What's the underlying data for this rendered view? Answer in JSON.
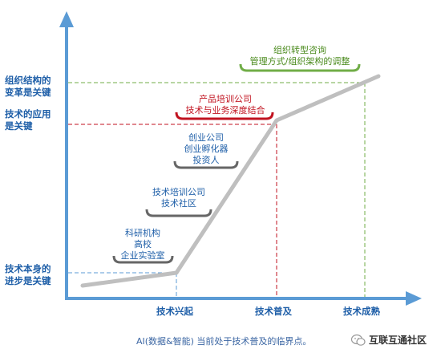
{
  "y_labels": {
    "top": [
      "组织结构的",
      "变革是关键"
    ],
    "middle": [
      "技术的应用",
      "是关键"
    ],
    "bottom": [
      "技术本身的",
      "进步是关键"
    ]
  },
  "x_labels": {
    "rise": "技术兴起",
    "adoption": "技术普及",
    "maturity": "技术成熟"
  },
  "stages": {
    "research": [
      "科研机构",
      "高校",
      "企业实验室"
    ],
    "training": [
      "技术培训公司",
      "技术社区"
    ],
    "startup": [
      "创业公司",
      "创业孵化器",
      "投资人"
    ],
    "product": [
      "产品培训公司",
      "技术与业务深度结合"
    ],
    "org": [
      "组织转型咨询",
      "管理方式/组织架构的调整"
    ]
  },
  "caption": "AI(数据&智能) 当前处于技术普及的临界点。",
  "brand": "互联互通社区",
  "colors": {
    "axis": "#5b9bd5",
    "curve": "#bfbfbf",
    "blue": "#1f5fa8",
    "red": "#c1121f",
    "green": "#70ad47"
  }
}
